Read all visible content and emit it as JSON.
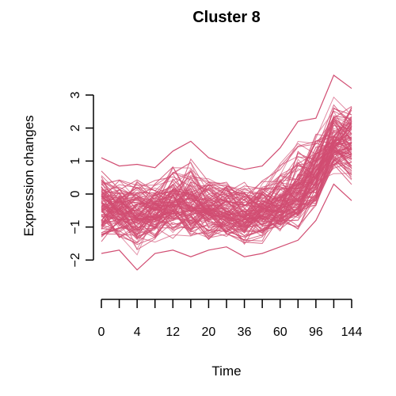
{
  "chart_data": {
    "type": "line",
    "title": "Cluster 8",
    "xlabel": "Time",
    "ylabel": "Expression changes",
    "x": [
      0,
      2,
      4,
      8,
      12,
      16,
      20,
      24,
      36,
      48,
      60,
      72,
      96,
      120,
      144
    ],
    "x_tick_labels": [
      "0",
      "4",
      "12",
      "20",
      "36",
      "60",
      "96",
      "144"
    ],
    "y_ticks": [
      -2,
      -1,
      0,
      1,
      2,
      3
    ],
    "y_tick_labels": [
      "−2",
      "−1",
      "0",
      "1",
      "2",
      "3"
    ],
    "ylim": [
      -2.4,
      3.6
    ],
    "line_color": "#d14d72",
    "grid": false,
    "series_summary": {
      "upper_envelope": [
        1.1,
        0.85,
        0.9,
        0.8,
        1.3,
        1.6,
        1.1,
        0.9,
        0.75,
        0.85,
        1.4,
        2.2,
        2.3,
        3.6,
        3.2
      ],
      "mean": [
        -0.4,
        -0.5,
        -0.55,
        -0.5,
        -0.4,
        -0.35,
        -0.45,
        -0.55,
        -0.6,
        -0.55,
        -0.35,
        0.0,
        0.6,
        1.5,
        1.6
      ],
      "lower_envelope": [
        -1.8,
        -1.7,
        -2.3,
        -1.8,
        -1.7,
        -1.9,
        -1.7,
        -1.6,
        -1.9,
        -1.8,
        -1.6,
        -1.4,
        -0.8,
        0.3,
        -0.2
      ]
    },
    "n_lines": 120
  }
}
